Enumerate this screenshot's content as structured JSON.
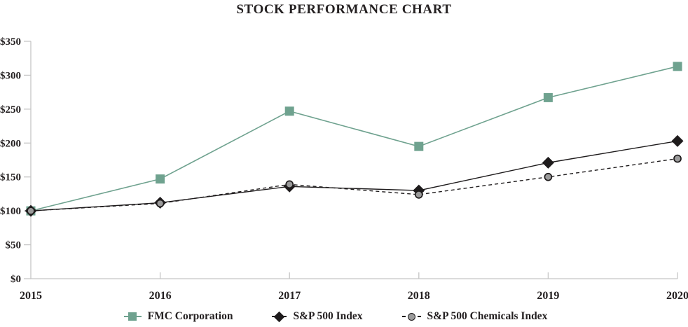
{
  "chart_data": {
    "type": "line",
    "title": "STOCK PERFORMANCE CHART",
    "categories": [
      "2015",
      "2016",
      "2017",
      "2018",
      "2019",
      "2020"
    ],
    "xlabel": "",
    "ylabel": "",
    "ylim": [
      0,
      350
    ],
    "grid": false,
    "legend_position": "bottom-center",
    "y_ticks": [
      {
        "label": "$350",
        "value": 350
      },
      {
        "label": "$300",
        "value": 300
      },
      {
        "label": "$250",
        "value": 250
      },
      {
        "label": "$200",
        "value": 200
      },
      {
        "label": "$150",
        "value": 150
      },
      {
        "label": "$100",
        "value": 100
      },
      {
        "label": "$50",
        "value": 50
      },
      {
        "label": "$0",
        "value": 0
      }
    ],
    "series": [
      {
        "name": "FMC Corporation",
        "marker": "square",
        "line_style": "solid",
        "color": "#6FA28F",
        "values": [
          100,
          147,
          247,
          195,
          267,
          313
        ]
      },
      {
        "name": "S&P 500 Index",
        "marker": "diamond",
        "line_style": "solid",
        "color": "#1E1B1C",
        "values": [
          100,
          112,
          136,
          130,
          171,
          203
        ]
      },
      {
        "name": "S&P 500 Chemicals Index",
        "marker": "circle",
        "line_style": "dashed",
        "color": "#1E1B1C",
        "marker_fill": "#9B9B9B",
        "values": [
          100,
          111,
          139,
          124,
          150,
          177
        ]
      }
    ]
  },
  "colors": {
    "background": "#FFFFFF",
    "axis": "#C5C5C5",
    "text": "#242021"
  }
}
